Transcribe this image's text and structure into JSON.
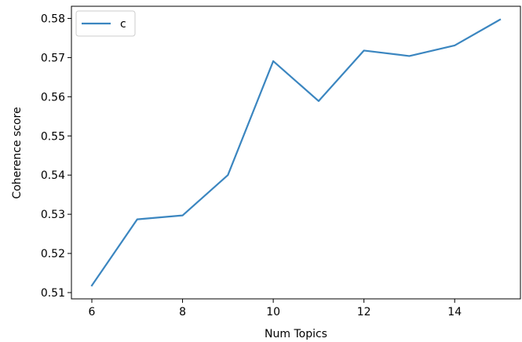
{
  "chart_data": {
    "type": "line",
    "title": "",
    "xlabel": "Num Topics",
    "ylabel": "Coherence score",
    "x": [
      6,
      7,
      8,
      9,
      10,
      11,
      12,
      13,
      14,
      15
    ],
    "series": [
      {
        "name": "c",
        "color": "#3b86c0",
        "values": [
          0.5118,
          0.5287,
          0.5297,
          0.54,
          0.5691,
          0.5589,
          0.5718,
          0.5704,
          0.5731,
          0.5797
        ]
      }
    ],
    "xlim": [
      5.55,
      15.45
    ],
    "ylim": [
      0.5084,
      0.5831
    ],
    "xticks": [
      6,
      8,
      10,
      12,
      14
    ],
    "xtick_labels": [
      "6",
      "8",
      "10",
      "12",
      "14"
    ],
    "yticks": [
      0.51,
      0.52,
      0.53,
      0.54,
      0.55,
      0.56,
      0.57,
      0.58
    ],
    "ytick_labels": [
      "0.51",
      "0.52",
      "0.53",
      "0.54",
      "0.55",
      "0.56",
      "0.57",
      "0.58"
    ],
    "grid": false,
    "legend_position": "top-left"
  }
}
